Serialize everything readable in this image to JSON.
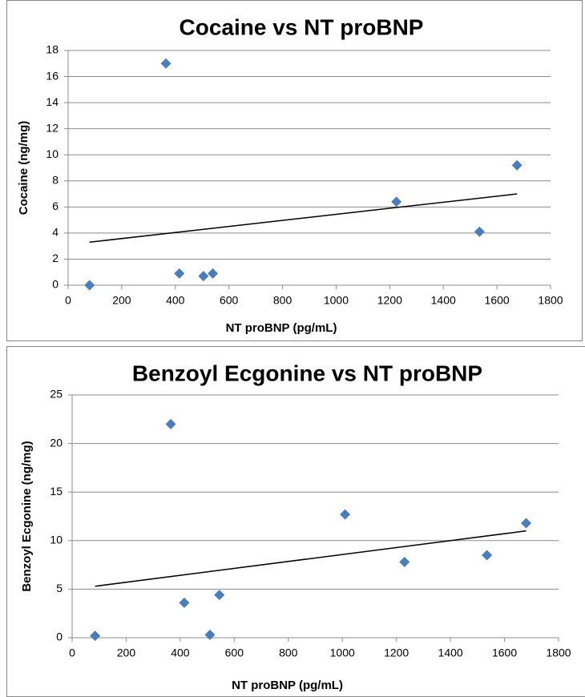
{
  "chart_data": [
    {
      "type": "scatter",
      "title": "Cocaine vs NT proBNP",
      "x_label": "NT proBNP (pg/mL)",
      "y_label": "Cocaine (ng/mg)",
      "x": [
        80,
        365,
        415,
        505,
        540,
        1225,
        1535,
        1675
      ],
      "values": [
        0,
        17,
        0.9,
        0.7,
        0.9,
        6.4,
        4.1,
        9.2
      ],
      "color": "#4a7ebb",
      "trendline": {
        "x": [
          80,
          1675
        ],
        "values": [
          3.3,
          7.0
        ],
        "color": "#000000"
      },
      "xlim": [
        0,
        1800
      ],
      "xticks": [
        0,
        200,
        400,
        600,
        800,
        1000,
        1200,
        1400,
        1600,
        1800
      ],
      "ylim": [
        0,
        18
      ],
      "yticks": [
        0,
        2,
        4,
        6,
        8,
        10,
        12,
        14,
        16,
        18
      ],
      "grid": true
    },
    {
      "type": "scatter",
      "title": "Benzoyl Ecgonine vs NT proBNP",
      "x_label": "NT proBNP (pg/mL)",
      "y_label": "Benzoyl Ecgonine (ng/mg)",
      "x": [
        85,
        365,
        415,
        510,
        545,
        1010,
        1230,
        1535,
        1680
      ],
      "values": [
        0.2,
        22,
        3.6,
        0.3,
        4.4,
        12.7,
        7.8,
        8.5,
        11.8
      ],
      "color": "#4a7ebb",
      "trendline": {
        "x": [
          85,
          1680
        ],
        "values": [
          5.3,
          11.0
        ],
        "color": "#000000"
      },
      "xlim": [
        0,
        1800
      ],
      "xticks": [
        0,
        200,
        400,
        600,
        800,
        1000,
        1200,
        1400,
        1600,
        1800
      ],
      "ylim": [
        0,
        25
      ],
      "yticks": [
        0,
        5,
        10,
        15,
        20,
        25
      ],
      "grid": true
    }
  ]
}
